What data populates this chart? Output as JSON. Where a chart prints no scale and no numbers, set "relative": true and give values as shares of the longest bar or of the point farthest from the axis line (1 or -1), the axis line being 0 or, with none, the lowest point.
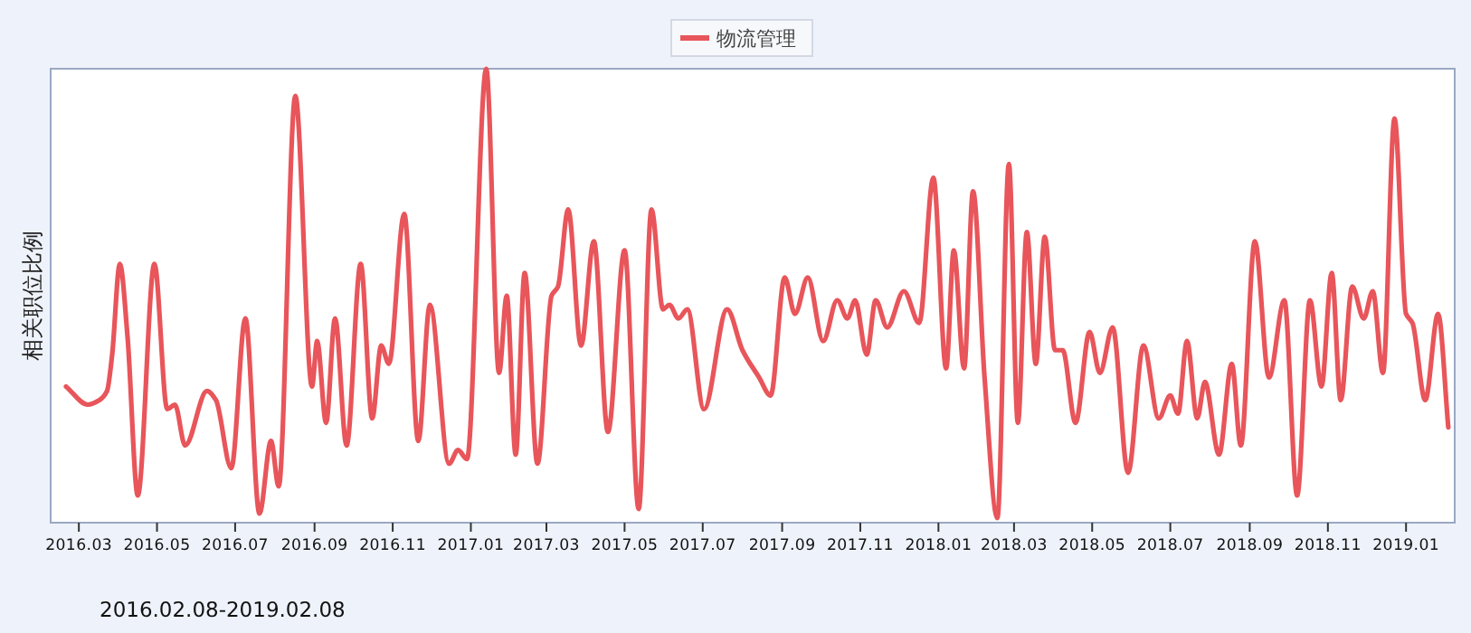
{
  "chart_data": {
    "type": "line",
    "relative": true,
    "ylabel": "相关职位比例",
    "legend": "top",
    "annotations": [
      "2016.02.08-2019.02.08"
    ],
    "xlim": [
      "2016-02-08",
      "2019-02-08"
    ],
    "xticks": [
      {
        "value": "2016-03-01",
        "label": "2016.03"
      },
      {
        "value": "2016-05-01",
        "label": "2016.05"
      },
      {
        "value": "2016-07-01",
        "label": "2016.07"
      },
      {
        "value": "2016-09-01",
        "label": "2016.09"
      },
      {
        "value": "2016-11-01",
        "label": "2016.11"
      },
      {
        "value": "2017-01-01",
        "label": "2017.01"
      },
      {
        "value": "2017-03-01",
        "label": "2017.03"
      },
      {
        "value": "2017-05-01",
        "label": "2017.05"
      },
      {
        "value": "2017-07-01",
        "label": "2017.07"
      },
      {
        "value": "2017-09-01",
        "label": "2017.09"
      },
      {
        "value": "2017-11-01",
        "label": "2017.11"
      },
      {
        "value": "2018-01-01",
        "label": "2018.01"
      },
      {
        "value": "2018-03-01",
        "label": "2018.03"
      },
      {
        "value": "2018-05-01",
        "label": "2018.05"
      },
      {
        "value": "2018-07-01",
        "label": "2018.07"
      },
      {
        "value": "2018-09-01",
        "label": "2018.09"
      },
      {
        "value": "2018-11-01",
        "label": "2018.11"
      },
      {
        "value": "2019-01-01",
        "label": "2019.01"
      }
    ],
    "x": [
      "2016-02-20",
      "2016-03-08",
      "2016-03-17",
      "2016-03-23",
      "2016-03-27",
      "2016-04-02",
      "2016-04-08",
      "2016-04-16",
      "2016-04-29",
      "2016-05-09",
      "2016-05-15",
      "2016-05-23",
      "2016-06-09",
      "2016-06-16",
      "2016-06-28",
      "2016-07-09",
      "2016-07-20",
      "2016-07-29",
      "2016-08-04",
      "2016-08-17",
      "2016-08-30",
      "2016-09-03",
      "2016-09-10",
      "2016-09-17",
      "2016-09-26",
      "2016-10-07",
      "2016-10-16",
      "2016-10-23",
      "2016-10-29",
      "2016-11-10",
      "2016-11-21",
      "2016-11-30",
      "2016-12-15",
      "2016-12-22",
      "2016-12-29",
      "2017-01-13",
      "2017-01-23",
      "2017-01-29",
      "2017-02-05",
      "2017-02-12",
      "2017-02-22",
      "2017-03-05",
      "2017-03-10",
      "2017-03-18",
      "2017-03-28",
      "2017-04-07",
      "2017-04-18",
      "2017-05-01",
      "2017-05-12",
      "2017-05-22",
      "2017-05-31",
      "2017-06-05",
      "2017-06-12",
      "2017-06-19",
      "2017-07-02",
      "2017-07-20",
      "2017-08-01",
      "2017-08-14",
      "2017-08-23",
      "2017-09-03",
      "2017-09-11",
      "2017-09-21",
      "2017-10-03",
      "2017-10-14",
      "2017-10-22",
      "2017-10-28",
      "2017-11-06",
      "2017-11-13",
      "2017-11-22",
      "2017-12-05",
      "2017-12-17",
      "2017-12-28",
      "2018-01-07",
      "2018-01-13",
      "2018-01-21",
      "2018-01-28",
      "2018-02-06",
      "2018-02-16",
      "2018-02-25",
      "2018-03-04",
      "2018-03-11",
      "2018-03-18",
      "2018-03-25",
      "2018-04-02",
      "2018-04-08",
      "2018-04-18",
      "2018-04-29",
      "2018-05-07",
      "2018-05-17",
      "2018-05-29",
      "2018-06-10",
      "2018-06-22",
      "2018-07-01",
      "2018-07-07",
      "2018-07-14",
      "2018-07-22",
      "2018-07-28",
      "2018-08-08",
      "2018-08-18",
      "2018-08-25",
      "2018-09-05",
      "2018-09-16",
      "2018-09-28",
      "2018-10-08",
      "2018-10-18",
      "2018-10-27",
      "2018-11-04",
      "2018-11-11",
      "2018-11-20",
      "2018-11-29",
      "2018-12-06",
      "2018-12-14",
      "2018-12-23",
      "2019-01-01",
      "2019-01-06",
      "2019-01-16",
      "2019-01-26",
      "2019-02-03"
    ],
    "series": [
      {
        "name": "物流管理",
        "color": "#e8555a",
        "values": [
          0.3,
          0.26,
          0.27,
          0.29,
          0.37,
          0.57,
          0.41,
          0.06,
          0.57,
          0.25,
          0.26,
          0.17,
          0.29,
          0.27,
          0.12,
          0.45,
          0.02,
          0.18,
          0.08,
          0.94,
          0.3,
          0.4,
          0.22,
          0.45,
          0.17,
          0.57,
          0.23,
          0.39,
          0.35,
          0.68,
          0.18,
          0.48,
          0.13,
          0.16,
          0.14,
          1.0,
          0.33,
          0.5,
          0.15,
          0.55,
          0.13,
          0.5,
          0.52,
          0.69,
          0.39,
          0.62,
          0.2,
          0.6,
          0.03,
          0.69,
          0.47,
          0.48,
          0.45,
          0.47,
          0.25,
          0.47,
          0.38,
          0.32,
          0.28,
          0.54,
          0.46,
          0.54,
          0.4,
          0.49,
          0.45,
          0.49,
          0.37,
          0.49,
          0.43,
          0.51,
          0.44,
          0.76,
          0.34,
          0.6,
          0.34,
          0.73,
          0.32,
          0.01,
          0.79,
          0.22,
          0.64,
          0.35,
          0.63,
          0.38,
          0.38,
          0.22,
          0.42,
          0.33,
          0.43,
          0.11,
          0.39,
          0.23,
          0.28,
          0.24,
          0.4,
          0.23,
          0.31,
          0.15,
          0.35,
          0.17,
          0.62,
          0.32,
          0.49,
          0.06,
          0.49,
          0.3,
          0.55,
          0.27,
          0.52,
          0.45,
          0.51,
          0.33,
          0.89,
          0.46,
          0.44,
          0.27,
          0.46,
          0.21
        ]
      }
    ]
  }
}
